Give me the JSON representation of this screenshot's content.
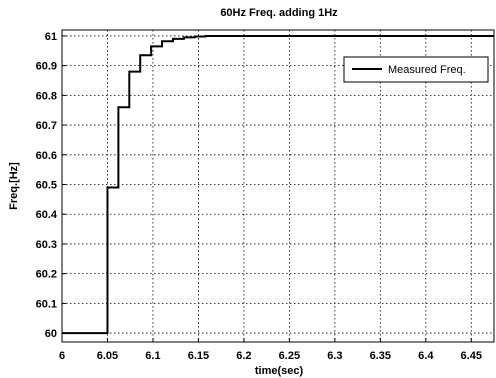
{
  "chart_data": {
    "type": "line",
    "title": "60Hz Freq. adding 1Hz",
    "xlabel": "time(sec)",
    "ylabel": "Freq.[Hz]",
    "xlim": [
      6.0,
      6.475
    ],
    "ylim": [
      59.97,
      61.02
    ],
    "xticks": [
      6,
      6.05,
      6.1,
      6.15,
      6.2,
      6.25,
      6.3,
      6.35,
      6.4,
      6.45
    ],
    "xtick_labels": [
      "6",
      "6.05",
      "6.1",
      "6.15",
      "6.2",
      "6.25",
      "6.3",
      "6.35",
      "6.4",
      "6.45"
    ],
    "yticks": [
      60,
      60.1,
      60.2,
      60.3,
      60.4,
      60.5,
      60.6,
      60.7,
      60.8,
      60.9,
      61
    ],
    "ytick_labels": [
      "60",
      "60.1",
      "60.2",
      "60.3",
      "60.4",
      "60.5",
      "60.6",
      "60.7",
      "60.8",
      "60.9",
      "61"
    ],
    "grid": true,
    "legend": "top-right",
    "series": [
      {
        "name": "Measured Freq.",
        "color": "#000000",
        "step": true,
        "x": [
          6.0,
          6.05,
          6.062,
          6.074,
          6.086,
          6.098,
          6.11,
          6.122,
          6.134,
          6.146,
          6.158,
          6.17,
          6.182,
          6.2,
          6.25,
          6.3,
          6.35,
          6.4,
          6.45,
          6.475
        ],
        "y": [
          60.0,
          60.49,
          60.76,
          60.88,
          60.935,
          60.965,
          60.982,
          60.99,
          60.995,
          60.998,
          61.0,
          61.0,
          61.0,
          61.0,
          61.0,
          61.0,
          61.0,
          61.0,
          61.0,
          61.0
        ]
      }
    ]
  }
}
